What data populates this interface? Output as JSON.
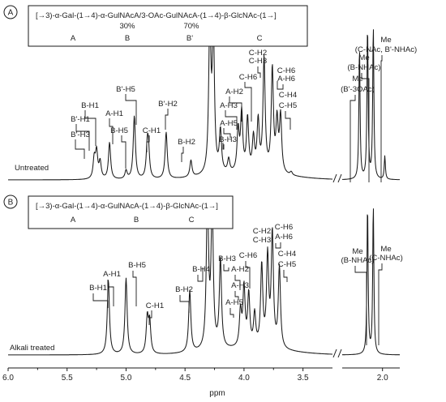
{
  "chart_data": [
    {
      "type": "line",
      "panel_letter": "A",
      "structure": {
        "formula": "[→3)-α-Gal-(1→4)-α-GulNAcA/3-OAc-GulNAcA-(1→4)-β-GlcNAc-(1→]",
        "percent_a": "30%",
        "percent_b": "70%",
        "residues": [
          "A",
          "B",
          "B'",
          "C"
        ]
      },
      "trace_label": "Untreated",
      "peak_labels": [
        {
          "text": "B'-H3",
          "ppm": 5.25
        },
        {
          "text": "B'-H1",
          "ppm": 5.24
        },
        {
          "text": "B-H1",
          "ppm": 5.22
        },
        {
          "text": "A-H1",
          "ppm": 5.14
        },
        {
          "text": "B-H5",
          "ppm": 5.0
        },
        {
          "text": "B'-H5",
          "ppm": 4.93
        },
        {
          "text": "C-H1",
          "ppm": 4.82
        },
        {
          "text": "B'-H2",
          "ppm": 4.66
        },
        {
          "text": "B-H2",
          "ppm": 4.45
        },
        {
          "text": "B-H3",
          "ppm": 4.22
        },
        {
          "text": "A-H5",
          "ppm": 4.19
        },
        {
          "text": "A-H3",
          "ppm": 4.05
        },
        {
          "text": "A-H2",
          "ppm": 4.02
        },
        {
          "text": "C-H6",
          "ppm": 3.97
        },
        {
          "text": "C-H2",
          "ppm": 3.83
        },
        {
          "text": "C-H3",
          "ppm": 3.83
        },
        {
          "text": "C-H6",
          "ppm": 3.76
        },
        {
          "text": "A-H6",
          "ppm": 3.74
        },
        {
          "text": "C-H4",
          "ppm": 3.69
        },
        {
          "text": "C-H5",
          "ppm": 3.69
        },
        {
          "text": "Me",
          "ppm": 2.2
        },
        {
          "text": "(B'-3OAc)",
          "ppm": 2.2
        },
        {
          "text": "Me",
          "ppm": 2.13
        },
        {
          "text": "(B-NHAc)",
          "ppm": 2.13
        },
        {
          "text": "Me",
          "ppm": 2.08
        },
        {
          "text": "(C-NAc, B'-NHAc)",
          "ppm": 2.08
        }
      ],
      "peaks": [
        {
          "ppm": 5.27,
          "height": 0.12
        },
        {
          "ppm": 5.25,
          "height": 0.16
        },
        {
          "ppm": 5.22,
          "height": 0.1
        },
        {
          "ppm": 5.14,
          "height": 0.22
        },
        {
          "ppm": 5.0,
          "height": 0.05
        },
        {
          "ppm": 4.93,
          "height": 0.38
        },
        {
          "ppm": 4.82,
          "height": 0.18
        },
        {
          "ppm": 4.81,
          "height": 0.15
        },
        {
          "ppm": 4.66,
          "height": 0.28
        },
        {
          "ppm": 4.45,
          "height": 0.1
        },
        {
          "ppm": 4.29,
          "height": 0.9
        },
        {
          "ppm": 4.26,
          "height": 0.85
        },
        {
          "ppm": 4.2,
          "height": 0.25
        },
        {
          "ppm": 4.13,
          "height": 0.08
        },
        {
          "ppm": 4.05,
          "height": 0.25
        },
        {
          "ppm": 4.02,
          "height": 0.35
        },
        {
          "ppm": 3.97,
          "height": 0.32
        },
        {
          "ppm": 3.92,
          "height": 0.2
        },
        {
          "ppm": 3.88,
          "height": 0.3
        },
        {
          "ppm": 3.83,
          "height": 0.68
        },
        {
          "ppm": 3.76,
          "height": 0.62
        },
        {
          "ppm": 3.72,
          "height": 0.3
        },
        {
          "ppm": 3.69,
          "height": 0.34
        },
        {
          "ppm": 3.6,
          "height": 0.02
        },
        {
          "ppm": 2.2,
          "height": 0.8
        },
        {
          "ppm": 2.13,
          "height": 0.92
        },
        {
          "ppm": 2.08,
          "height": 0.92
        },
        {
          "ppm": 1.98,
          "height": 0.14
        }
      ]
    },
    {
      "type": "line",
      "panel_letter": "B",
      "structure": {
        "formula": "[→3)-α-Gal-(1→4)-α-GulNAcA-(1→4)-β-GlcNAc-(1→]",
        "residues": [
          "A",
          "B",
          "C"
        ]
      },
      "trace_label": "Alkali treated",
      "peak_labels": [
        {
          "text": "B-H1",
          "ppm": 5.15
        },
        {
          "text": "A-H1",
          "ppm": 5.14
        },
        {
          "text": "B-H5",
          "ppm": 5.0
        },
        {
          "text": "C-H1",
          "ppm": 4.81
        },
        {
          "text": "B-H2",
          "ppm": 4.46
        },
        {
          "text": "B-H4",
          "ppm": 4.31
        },
        {
          "text": "B-H3",
          "ppm": 4.2
        },
        {
          "text": "A-H5",
          "ppm": 4.03
        },
        {
          "text": "A-H3",
          "ppm": 4.03
        },
        {
          "text": "A-H2",
          "ppm": 4.01
        },
        {
          "text": "C-H6",
          "ppm": 3.96
        },
        {
          "text": "C-H2",
          "ppm": 3.84
        },
        {
          "text": "C-H3",
          "ppm": 3.84
        },
        {
          "text": "C-H6",
          "ppm": 3.76
        },
        {
          "text": "A-H6",
          "ppm": 3.76
        },
        {
          "text": "C-H4",
          "ppm": 3.7
        },
        {
          "text": "C-H5",
          "ppm": 3.7
        },
        {
          "text": "Me",
          "ppm": 2.13
        },
        {
          "text": "(B-NHAc)",
          "ppm": 2.13
        },
        {
          "text": "Me",
          "ppm": 2.08
        },
        {
          "text": "(C-NHAc)",
          "ppm": 2.08
        }
      ],
      "peaks": [
        {
          "ppm": 5.15,
          "height": 0.46
        },
        {
          "ppm": 5.0,
          "height": 0.47
        },
        {
          "ppm": 4.82,
          "height": 0.22
        },
        {
          "ppm": 4.8,
          "height": 0.19
        },
        {
          "ppm": 4.46,
          "height": 0.38
        },
        {
          "ppm": 4.31,
          "height": 0.95
        },
        {
          "ppm": 4.27,
          "height": 0.88
        },
        {
          "ppm": 4.2,
          "height": 0.55
        },
        {
          "ppm": 4.03,
          "height": 0.22
        },
        {
          "ppm": 4.0,
          "height": 0.36
        },
        {
          "ppm": 3.96,
          "height": 0.32
        },
        {
          "ppm": 3.91,
          "height": 0.2
        },
        {
          "ppm": 3.85,
          "height": 0.5
        },
        {
          "ppm": 3.8,
          "height": 0.55
        },
        {
          "ppm": 3.76,
          "height": 0.7
        },
        {
          "ppm": 3.7,
          "height": 0.5
        },
        {
          "ppm": 2.13,
          "height": 0.92
        },
        {
          "ppm": 2.08,
          "height": 0.92
        }
      ]
    }
  ],
  "x_axis": {
    "label": "ppm",
    "segments": [
      {
        "range": [
          6.0,
          3.25
        ],
        "ticks": [
          "6.0",
          "5.5",
          "5.0",
          "4.5",
          "4.0",
          "3.5"
        ],
        "tick_values": [
          6.0,
          5.5,
          5.0,
          4.5,
          4.0,
          3.5
        ]
      },
      {
        "range": [
          2.35,
          1.85
        ],
        "ticks": [
          "2.0"
        ],
        "tick_values": [
          2.0
        ]
      }
    ],
    "reversed": true,
    "axis_break": true
  }
}
